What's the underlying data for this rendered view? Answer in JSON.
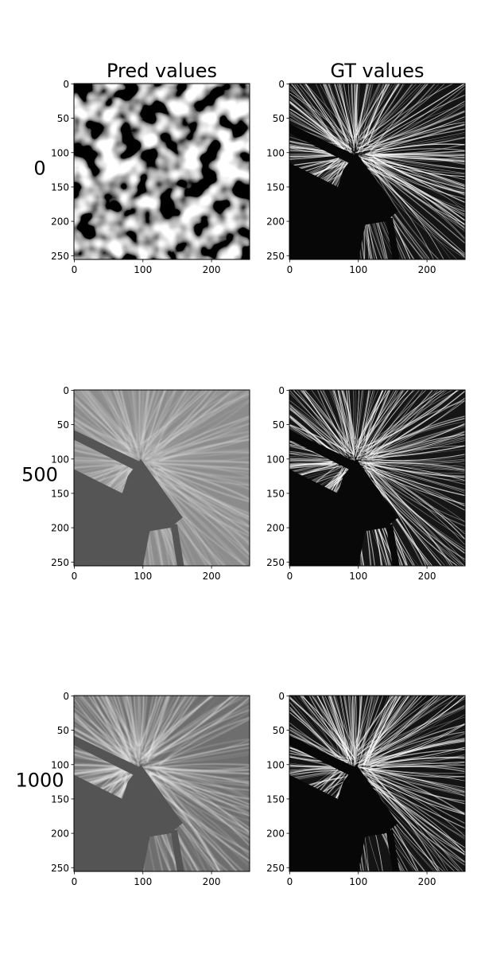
{
  "chart_data": [
    {
      "type": "image",
      "title": "Pred values",
      "ylabel": "0",
      "xlim": [
        -0.5,
        255.5
      ],
      "ylim": [
        255.5,
        -0.5
      ],
      "xticks": [
        0,
        100,
        200
      ],
      "yticks": [
        0,
        50,
        100,
        150,
        200,
        250
      ]
    },
    {
      "type": "image",
      "title": "GT values",
      "xlim": [
        -0.5,
        255.5
      ],
      "ylim": [
        255.5,
        -0.5
      ],
      "xticks": [
        0,
        100,
        200
      ],
      "yticks": [
        0,
        50,
        100,
        150,
        200,
        250
      ]
    },
    {
      "type": "image",
      "ylabel": "500",
      "xlim": [
        -0.5,
        255.5
      ],
      "ylim": [
        255.5,
        -0.5
      ],
      "xticks": [
        0,
        100,
        200
      ],
      "yticks": [
        0,
        50,
        100,
        150,
        200,
        250
      ]
    },
    {
      "type": "image",
      "xlim": [
        -0.5,
        255.5
      ],
      "ylim": [
        255.5,
        -0.5
      ],
      "xticks": [
        0,
        100,
        200
      ],
      "yticks": [
        0,
        50,
        100,
        150,
        200,
        250
      ]
    },
    {
      "type": "image",
      "ylabel": "1000",
      "xlim": [
        -0.5,
        255.5
      ],
      "ylim": [
        255.5,
        -0.5
      ],
      "xticks": [
        0,
        100,
        200
      ],
      "yticks": [
        0,
        50,
        100,
        150,
        200,
        250
      ]
    },
    {
      "type": "image",
      "xlim": [
        -0.5,
        255.5
      ],
      "ylim": [
        255.5,
        -0.5
      ],
      "xticks": [
        0,
        100,
        200
      ],
      "yticks": [
        0,
        50,
        100,
        150,
        200,
        250
      ]
    }
  ]
}
